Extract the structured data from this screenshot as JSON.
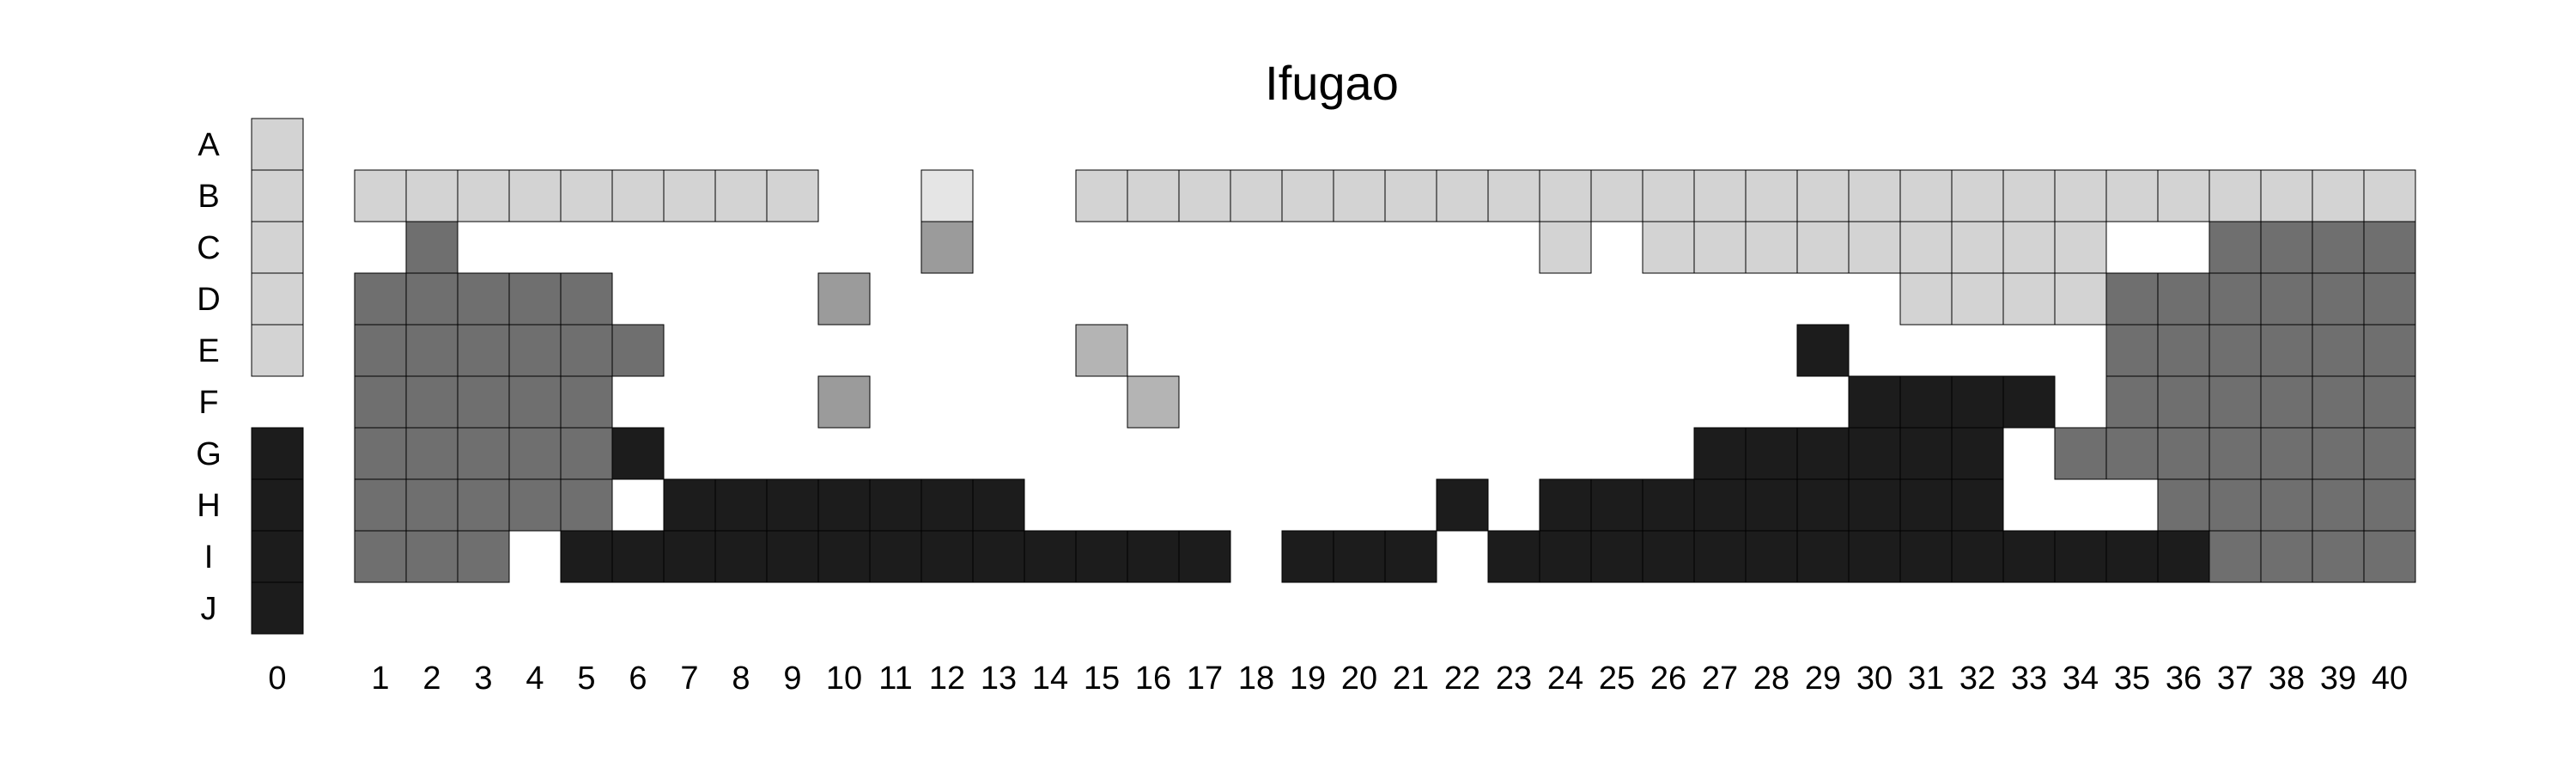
{
  "chart_data": {
    "type": "heatmap",
    "title": "Ifugao",
    "xlabel": "",
    "ylabel": "",
    "grid": false,
    "rows": [
      "A",
      "B",
      "C",
      "D",
      "E",
      "F",
      "G",
      "H",
      "I",
      "J"
    ],
    "columns": [
      "0",
      "1",
      "2",
      "3",
      "4",
      "5",
      "6",
      "7",
      "8",
      "9",
      "10",
      "11",
      "12",
      "13",
      "14",
      "15",
      "16",
      "17",
      "18",
      "19",
      "20",
      "21",
      "22",
      "23",
      "24",
      "25",
      "26",
      "27",
      "28",
      "29",
      "30",
      "31",
      "32",
      "33",
      "34",
      "35",
      "36",
      "37",
      "38",
      "39",
      "40"
    ],
    "color_scale": {
      "L": "#d3d3d3",
      "W": "#e5e5e5",
      "M": "#9b9b9b",
      "S": "#b4b4b4",
      "G": "#6f6f6f",
      "K": "#1c1c1c"
    },
    "legend_note": "Cell letters map to grey shades: W lightest, L light, S light-medium, M medium, G dark, K black; '.' = no cell",
    "cells": {
      "0": "LLLLL.KKKK",
      "1": ".L.GGGGGG.",
      "2": ".LGGGGGGG.",
      "3": ".L.GGGGGG.",
      "4": ".L.GGGGG..",
      "5": ".L.GGGGGK.",
      "6": ".L..G.K.K.",
      "7": ".L.....KK.",
      "8": ".L.....KK.",
      "9": ".L.....KK.",
      "10": "...M.M.KK.",
      "11": ".......KK.",
      "12": ".WM....KK.",
      "13": ".......KK.",
      "14": "........K.",
      "15": ".L..S...K.",
      "16": ".L...S..K.",
      "17": ".L......K.",
      "18": ".L........",
      "19": ".L......K.",
      "20": ".L......K.",
      "21": ".L......K.",
      "22": ".L.....K..",
      "23": ".L......K.",
      "24": ".LL....KK.",
      "25": ".L.....KK.",
      "26": ".LL....KK.",
      "27": ".LL...KKK.",
      "28": ".LL...KKK.",
      "29": ".LL.K.KKK.",
      "30": ".LL..KKKK.",
      "31": ".LLL.KKKK.",
      "32": ".LLL.KKKK.",
      "33": ".LLL.K..K.",
      "34": ".LLL..G.K.",
      "35": ".L.GGGG.K.",
      "36": ".L.GGGGGK.",
      "37": ".LGGGGGGG.",
      "38": ".LGGGGGGG.",
      "39": ".LGGGGGGG.",
      "40": ".LGGGGGGG."
    }
  }
}
